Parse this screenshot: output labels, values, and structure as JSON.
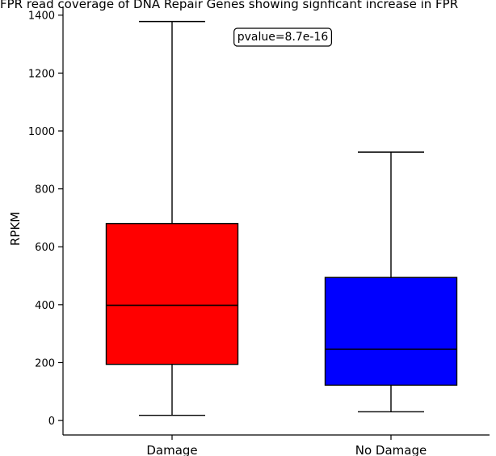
{
  "chart_data": {
    "type": "box",
    "title": "FPR read coverage of DNA Repair Genes showing signficant increase in FPR",
    "xlabel": "",
    "ylabel": "RPKM",
    "ylim": [
      -50,
      1430
    ],
    "yticks": [
      0,
      200,
      400,
      600,
      800,
      1000,
      1200,
      1400
    ],
    "categories": [
      "Damage",
      "No Damage"
    ],
    "boxes": [
      {
        "category": "Damage",
        "whisker_low": 18,
        "q1": 194,
        "median": 398,
        "q3": 680,
        "whisker_high": 1378,
        "color": "#ff0000"
      },
      {
        "category": "No Damage",
        "whisker_low": 30,
        "q1": 122,
        "median": 246,
        "q3": 494,
        "whisker_high": 927,
        "color": "#0000ff"
      }
    ],
    "annotation": "pvalue=8.7e-16",
    "grid": false
  }
}
